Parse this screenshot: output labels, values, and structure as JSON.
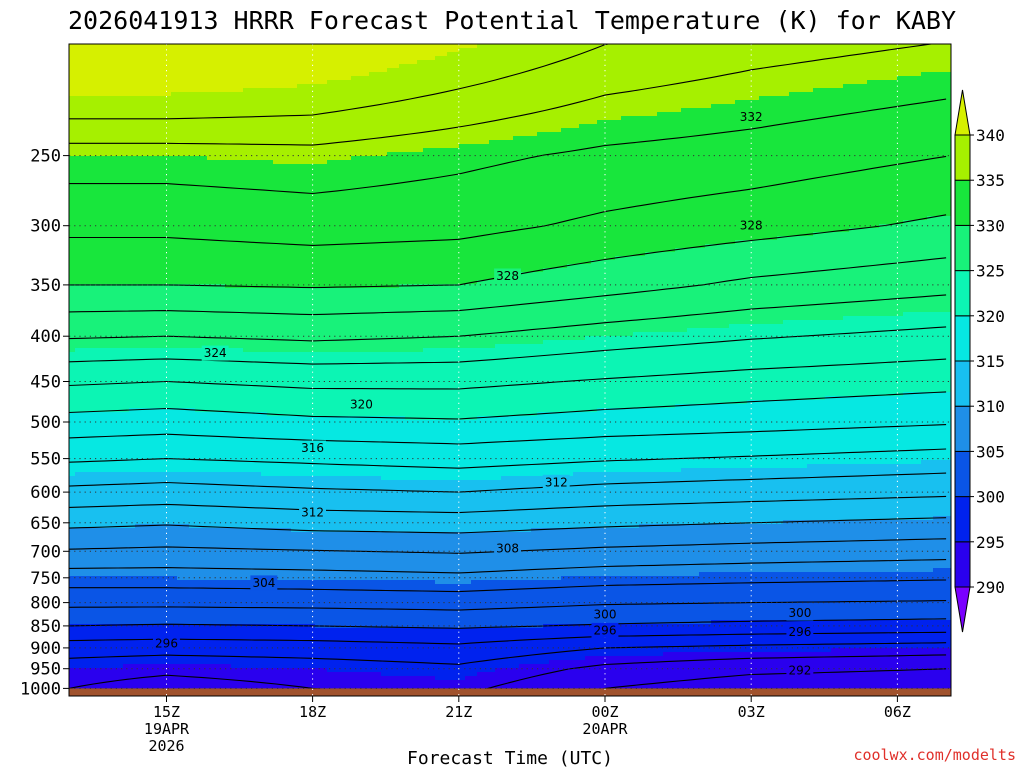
{
  "chart_data": {
    "type": "heatmap",
    "title": "2026041913 HRRR Forecast Potential Temperature (K) for KABY",
    "xlabel": "Forecast Time (UTC)",
    "ylabel": "",
    "credit": "coolwx.com/modelts",
    "y_scale": "log-pressure",
    "ylim": [
      1020,
      187
    ],
    "y_ticks": [
      250,
      300,
      350,
      400,
      450,
      500,
      550,
      600,
      650,
      700,
      750,
      800,
      850,
      900,
      950,
      1000
    ],
    "xlim": [
      13.0,
      31.1
    ],
    "x_ticks": [
      {
        "x": 15,
        "lines": [
          "15Z",
          "19APR",
          "2026"
        ]
      },
      {
        "x": 18,
        "lines": [
          "18Z"
        ]
      },
      {
        "x": 21,
        "lines": [
          "21Z"
        ]
      },
      {
        "x": 24,
        "lines": [
          "00Z",
          "20APR"
        ]
      },
      {
        "x": 27,
        "lines": [
          "03Z"
        ]
      },
      {
        "x": 30,
        "lines": [
          "06Z"
        ]
      }
    ],
    "grid": true,
    "surface_pressure": 1000,
    "surface_color": "#a0522d",
    "colorbar": {
      "levels": [
        290,
        295,
        300,
        305,
        310,
        315,
        320,
        325,
        330,
        335,
        340
      ],
      "colors": [
        "#7a00ff",
        "#2a00ee",
        "#0022ee",
        "#0a55e6",
        "#1f8fe8",
        "#18c0f0",
        "#06e8e2",
        "#0cf5b4",
        "#18f27a",
        "#18e63c",
        "#a6f000",
        "#d6f000"
      ]
    },
    "theta_profiles": [
      {
        "hour": 13,
        "pressure": [
          1000,
          950,
          900,
          850,
          800,
          750,
          700,
          650,
          600,
          550,
          500,
          450,
          400,
          350,
          300,
          250,
          200
        ],
        "theta": [
          294,
          295,
          297,
          300,
          302.5,
          305,
          307.8,
          310.5,
          313.5,
          316.3,
          319.3,
          322.3,
          326.2,
          330,
          332.5,
          335,
          342
        ]
      },
      {
        "hour": 15,
        "pressure": [
          1000,
          950,
          900,
          850,
          800,
          750,
          700,
          650,
          600,
          550,
          500,
          450,
          400,
          350,
          300,
          250,
          200
        ],
        "theta": [
          293,
          294.5,
          296.8,
          299.8,
          302.5,
          305,
          307.6,
          310.2,
          313.2,
          316,
          319,
          322,
          326,
          330,
          332.5,
          335,
          342
        ]
      },
      {
        "hour": 18,
        "pressure": [
          1000,
          950,
          900,
          850,
          800,
          750,
          700,
          650,
          600,
          550,
          500,
          450,
          400,
          350,
          300,
          250,
          200
        ],
        "theta": [
          294,
          295,
          297,
          300,
          302.6,
          305.2,
          307.9,
          310.8,
          313.7,
          316.4,
          319.6,
          322.5,
          326.4,
          330.2,
          332.9,
          335.3,
          341
        ]
      },
      {
        "hour": 21,
        "pressure": [
          1000,
          950,
          900,
          850,
          800,
          750,
          700,
          650,
          600,
          550,
          500,
          450,
          400,
          350,
          300,
          250,
          200
        ],
        "theta": [
          294.5,
          295.6,
          297.5,
          300.3,
          302.8,
          305.5,
          308.2,
          311,
          314,
          316.8,
          319.8,
          322.5,
          326,
          330,
          332.6,
          334.5,
          339
        ]
      },
      {
        "hour": 24,
        "pressure": [
          1000,
          950,
          900,
          850,
          800,
          750,
          700,
          650,
          600,
          550,
          500,
          450,
          400,
          350,
          300,
          250,
          200
        ],
        "theta": [
          292,
          293.5,
          296,
          299.8,
          302.2,
          304.8,
          307.6,
          310.4,
          313.3,
          316.2,
          319.2,
          321.8,
          325,
          328.8,
          331.6,
          333.6,
          337
        ]
      },
      {
        "hour": 27,
        "pressure": [
          1000,
          950,
          900,
          850,
          800,
          750,
          700,
          650,
          600,
          550,
          500,
          450,
          400,
          350,
          300,
          250,
          200
        ],
        "theta": [
          290.8,
          292.5,
          295.5,
          299.5,
          302,
          304.5,
          307.2,
          310,
          312.9,
          315.8,
          318.8,
          321.2,
          324.2,
          327.6,
          330.8,
          333.1,
          336
        ]
      },
      {
        "hour": 31.1,
        "pressure": [
          1000,
          950,
          900,
          850,
          800,
          750,
          700,
          650,
          600,
          550,
          500,
          450,
          400,
          350,
          300,
          250,
          200
        ],
        "theta": [
          290.5,
          292,
          295,
          299.2,
          301.8,
          304.2,
          306.8,
          309.5,
          312.4,
          315.2,
          318.2,
          320.6,
          323.4,
          326.6,
          329.6,
          332,
          335
        ]
      }
    ],
    "contour_levels": [
      292,
      294,
      296,
      298,
      300,
      302,
      304,
      306,
      308,
      310,
      312,
      314,
      316,
      318,
      320,
      322,
      324,
      326,
      328,
      330,
      332,
      334,
      336,
      338
    ],
    "contour_labels": [
      {
        "text": "292",
        "x": 28.0,
        "p": 955
      },
      {
        "text": "296",
        "x": 15.0,
        "p": 890
      },
      {
        "text": "296",
        "x": 24.0,
        "p": 860
      },
      {
        "text": "296",
        "x": 28.0,
        "p": 864
      },
      {
        "text": "300",
        "x": 24.0,
        "p": 825
      },
      {
        "text": "300",
        "x": 28.0,
        "p": 822
      },
      {
        "text": "304",
        "x": 17.0,
        "p": 760
      },
      {
        "text": "308",
        "x": 22.0,
        "p": 695
      },
      {
        "text": "312",
        "x": 18.0,
        "p": 633
      },
      {
        "text": "312",
        "x": 23.0,
        "p": 585
      },
      {
        "text": "316",
        "x": 18.0,
        "p": 535
      },
      {
        "text": "320",
        "x": 19.0,
        "p": 478
      },
      {
        "text": "324",
        "x": 16.0,
        "p": 418
      },
      {
        "text": "328",
        "x": 22.0,
        "p": 342
      },
      {
        "text": "328",
        "x": 27.0,
        "p": 300
      },
      {
        "text": "332",
        "x": 27.0,
        "p": 226
      }
    ]
  }
}
